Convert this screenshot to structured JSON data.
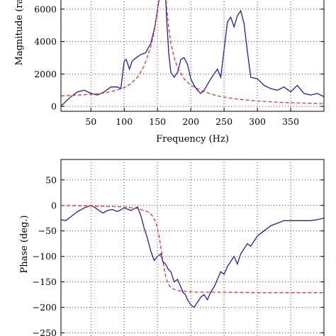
{
  "chart_data": [
    {
      "type": "line",
      "xlabel": "Frequency (Hz)",
      "ylabel": "Magnitude (ra",
      "xlim": [
        5,
        400
      ],
      "ylim": [
        -300,
        7000
      ],
      "xticks": [
        "50",
        "100",
        "150",
        "200",
        "250",
        "300",
        "350"
      ],
      "yticks": [
        "0",
        "2000",
        "4000",
        "6000"
      ],
      "grid": true,
      "series": [
        {
          "color": "#1f1fa0",
          "style": "solid",
          "x": [
            5,
            12,
            20,
            30,
            40,
            50,
            60,
            70,
            80,
            90,
            95,
            100,
            103,
            108,
            112,
            118,
            125,
            132,
            140,
            146,
            152,
            155,
            158,
            160,
            162,
            164,
            167,
            170,
            175,
            180,
            185,
            190,
            195,
            200,
            205,
            210,
            215,
            220,
            230,
            240,
            245,
            250,
            255,
            260,
            265,
            270,
            275,
            280,
            285,
            290,
            300,
            310,
            320,
            330,
            340,
            350,
            360,
            370,
            380,
            390,
            400
          ],
          "y": [
            0,
            300,
            600,
            900,
            1000,
            800,
            700,
            900,
            1200,
            1200,
            1100,
            2800,
            2900,
            2300,
            2800,
            3000,
            3200,
            3300,
            3900,
            4900,
            6500,
            7200,
            7500,
            7600,
            6800,
            5200,
            3200,
            2100,
            1800,
            2100,
            2900,
            3000,
            2600,
            1700,
            1300,
            1000,
            800,
            1000,
            1700,
            2300,
            1800,
            3500,
            5200,
            5500,
            4900,
            5600,
            5900,
            5100,
            3400,
            1800,
            1700,
            1300,
            1100,
            1000,
            1200,
            900,
            1300,
            800,
            700,
            800,
            600
          ]
        },
        {
          "color": "#d83a2e",
          "style": "dashed",
          "x": [
            5,
            20,
            40,
            60,
            80,
            100,
            110,
            120,
            130,
            140,
            145,
            150,
            153,
            156,
            158,
            160,
            162,
            164,
            167,
            170,
            175,
            180,
            190,
            200,
            220,
            240,
            270,
            300,
            340,
            400
          ],
          "y": [
            650,
            680,
            720,
            780,
            900,
            1150,
            1400,
            1800,
            2500,
            3700,
            4600,
            5900,
            6900,
            7600,
            7800,
            7700,
            7000,
            6000,
            4800,
            3900,
            3000,
            2400,
            1700,
            1300,
            900,
            650,
            450,
            330,
            240,
            170
          ]
        }
      ]
    },
    {
      "type": "line",
      "xlabel": "",
      "ylabel": "Phase (deg.)",
      "xlim": [
        5,
        400
      ],
      "ylim": [
        -270,
        90
      ],
      "yticks": [
        "50",
        "0",
        "−50",
        "−100",
        "−150",
        "−200",
        "−250"
      ],
      "grid": true,
      "series": [
        {
          "color": "#1f1fa0",
          "style": "solid",
          "x": [
            5,
            12,
            20,
            30,
            40,
            50,
            57,
            62,
            68,
            75,
            82,
            90,
            100,
            110,
            120,
            125,
            130,
            135,
            140,
            145,
            150,
            155,
            158,
            162,
            166,
            170,
            175,
            180,
            185,
            188,
            192,
            195,
            200,
            205,
            210,
            215,
            220,
            225,
            230,
            235,
            240,
            245,
            250,
            255,
            260,
            265,
            270,
            275,
            280,
            285,
            290,
            295,
            300,
            305,
            310,
            315,
            320,
            330,
            340,
            350,
            360,
            370,
            380,
            390,
            400
          ],
          "y": [
            -28,
            -30,
            -22,
            -12,
            -5,
            0,
            -5,
            -10,
            -15,
            -10,
            -8,
            -12,
            -5,
            -10,
            -3,
            -20,
            -45,
            -65,
            -90,
            -108,
            -100,
            -95,
            -110,
            -115,
            -125,
            -130,
            -150,
            -145,
            -160,
            -170,
            -175,
            -185,
            -195,
            -200,
            -190,
            -180,
            -175,
            -185,
            -170,
            -160,
            -145,
            -130,
            -135,
            -120,
            -110,
            -100,
            -115,
            -95,
            -85,
            -75,
            -80,
            -70,
            -60,
            -55,
            -50,
            -45,
            -40,
            -35,
            -30,
            -30,
            -30,
            -30,
            -30,
            -28,
            -25
          ]
        },
        {
          "color": "#d83a2e",
          "style": "dashed",
          "x": [
            5,
            50,
            100,
            120,
            135,
            142,
            147,
            150,
            153,
            156,
            158,
            160,
            162,
            165,
            168,
            172,
            178,
            185,
            195,
            210,
            250,
            300,
            400
          ],
          "y": [
            0,
            -1,
            -3,
            -6,
            -12,
            -20,
            -32,
            -45,
            -65,
            -90,
            -108,
            -125,
            -138,
            -150,
            -158,
            -163,
            -166,
            -168,
            -169,
            -170,
            -170,
            -171,
            -171
          ]
        }
      ]
    }
  ]
}
